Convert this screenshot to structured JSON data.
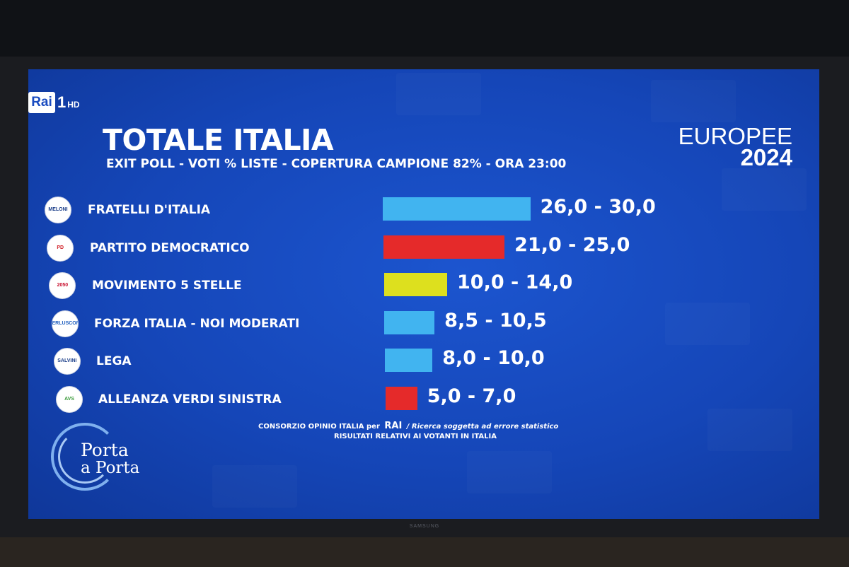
{
  "channel": {
    "name": "Rai",
    "number": "1",
    "quality": "HD"
  },
  "header": {
    "title": "TOTALE ITALIA",
    "subtitle": "EXIT POLL - VOTI % LISTE - COPERTURA CAMPIONE 82% - ORA 23:00",
    "election_line1": "EUROPEE",
    "election_line2": "2024"
  },
  "chart_data": {
    "type": "bar",
    "orientation": "horizontal",
    "title": "TOTALE ITALIA",
    "subtitle": "EXIT POLL - VOTI % LISTE - COPERTURA CAMPIONE 82% - ORA 23:00",
    "categories": [
      "FRATELLI D'ITALIA",
      "PARTITO DEMOCRATICO",
      "MOVIMENTO 5 STELLE",
      "FORZA ITALIA - NOI MODERATI",
      "LEGA",
      "ALLEANZA VERDI SINISTRA"
    ],
    "ranges": [
      [
        26.0,
        30.0
      ],
      [
        21.0,
        25.0
      ],
      [
        10.0,
        14.0
      ],
      [
        8.5,
        10.5
      ],
      [
        8.0,
        10.0
      ],
      [
        5.0,
        7.0
      ]
    ],
    "labels": [
      "26,0 - 30,0",
      "21,0 - 25,0",
      "10,0 - 14,0",
      "8,5 - 10,5",
      "8,0 - 10,0",
      "5,0 - 7,0"
    ],
    "colors": [
      "#41b4f0",
      "#e52a2a",
      "#dde01e",
      "#41b4f0",
      "#41b4f0",
      "#e52a2a"
    ],
    "logo_icons": [
      "fdi-logo-icon",
      "pd-logo-icon",
      "m5s-logo-icon",
      "fi-nm-logo-icon",
      "lega-logo-icon",
      "avs-logo-icon"
    ],
    "logo_texts": [
      "MELONI",
      "PD",
      "2050",
      "BERLUSCONI",
      "SALVINI",
      "AVS"
    ],
    "grid": false,
    "legend": "none"
  },
  "footer": {
    "source_prefix": "CONSORZIO OPINIO ITALIA per",
    "source_brand": "RAI",
    "source_note": "/ Ricerca soggetta ad errore statistico",
    "source_line2": "RISULTATI RELATIVI AI VOTANTI IN ITALIA"
  },
  "program": {
    "line1": "Porta",
    "line2": "a Porta"
  },
  "tv": {
    "brand": "SAMSUNG"
  }
}
